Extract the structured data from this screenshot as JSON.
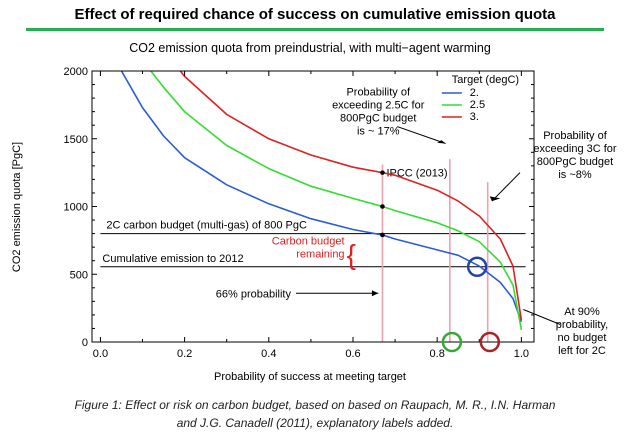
{
  "page": {
    "title": "Effect of required chance of success on cumulative emission quota",
    "title_rule_color": "#22b14c"
  },
  "caption": {
    "line1": "Figure 1: Effect or risk on carbon budget, based on based on Raupach, M. R., I.N. Harman",
    "line2": "and J.G. Canadell (2011), explanatory labels added."
  },
  "chart_data": {
    "type": "line",
    "title": "CO2 emission quota from preindustrial, with multi−agent warming",
    "xlabel": "Probability of success at meeting target",
    "ylabel": "CO2 emission quota [PgC]",
    "xlim": [
      -0.02,
      1.03
    ],
    "ylim": [
      0,
      2000
    ],
    "x_ticks": [
      0.0,
      0.2,
      0.4,
      0.6,
      0.8,
      1.0
    ],
    "x_tick_labels": [
      "0.0",
      "0.2",
      "0.4",
      "0.6",
      "0.8",
      "1.0"
    ],
    "y_ticks": [
      0,
      500,
      1000,
      1500,
      2000
    ],
    "y_tick_labels": [
      "0",
      "500",
      "1000",
      "1500",
      "2000"
    ],
    "legend": {
      "title": "Target (degC)",
      "position": "top-right",
      "entries": [
        "2.",
        "2.5",
        "3."
      ]
    },
    "series": [
      {
        "name": "2.",
        "color": "#2a5cd6",
        "x": [
          0.05,
          0.1,
          0.15,
          0.2,
          0.3,
          0.4,
          0.5,
          0.6,
          0.67,
          0.7,
          0.8,
          0.85,
          0.9,
          0.95,
          0.98,
          1.0
        ],
        "y": [
          2000,
          1730,
          1520,
          1360,
          1160,
          1020,
          910,
          830,
          790,
          760,
          680,
          640,
          560,
          440,
          320,
          150
        ]
      },
      {
        "name": "2.5",
        "color": "#33dd33",
        "x": [
          0.12,
          0.15,
          0.2,
          0.3,
          0.4,
          0.5,
          0.6,
          0.67,
          0.7,
          0.8,
          0.85,
          0.9,
          0.95,
          0.98,
          1.0
        ],
        "y": [
          2000,
          1880,
          1700,
          1450,
          1280,
          1150,
          1060,
          1000,
          970,
          880,
          820,
          740,
          590,
          420,
          90
        ]
      },
      {
        "name": "3.",
        "color": "#dd2222",
        "x": [
          0.19,
          0.2,
          0.3,
          0.4,
          0.5,
          0.6,
          0.67,
          0.7,
          0.8,
          0.85,
          0.9,
          0.95,
          0.98,
          1.0
        ],
        "y": [
          2000,
          1960,
          1680,
          1500,
          1380,
          1290,
          1250,
          1230,
          1120,
          1040,
          930,
          760,
          560,
          160
        ]
      }
    ],
    "reference_lines": [
      {
        "y": 800,
        "label": "2C carbon budget (multi-gas) of 800 PgC"
      },
      {
        "y": 555,
        "label": "Cumulative emission to 2012"
      }
    ],
    "vertical_markers": [
      {
        "x": 0.67,
        "label": "IPCC (2013)",
        "color": "#f0a0b0"
      },
      {
        "x": 0.83,
        "color": "#f0a0b0"
      },
      {
        "x": 0.92,
        "color": "#f0a0b0"
      }
    ],
    "points": [
      {
        "x": 0.67,
        "y": 1250
      },
      {
        "x": 0.67,
        "y": 1000
      },
      {
        "x": 0.67,
        "y": 790
      }
    ],
    "annotations": {
      "p25": [
        "Probability of",
        "exceeding 2.5C for",
        "800PgC budget",
        "is ~ 17%"
      ],
      "p3": [
        "Probability of",
        "exceeding 3C for",
        "800PgC budget",
        "is ~8%"
      ],
      "remaining": [
        "Carbon budget",
        "remaining"
      ],
      "prob66": "66% probability",
      "prob90": [
        "At 90%",
        "probability,",
        "no budget",
        "left for 2C"
      ]
    },
    "highlight_circles": [
      {
        "x": 0.895,
        "y": 555,
        "color": "#2244aa"
      },
      {
        "x": 0.835,
        "y": 0,
        "color": "#33aa33"
      },
      {
        "x": 0.925,
        "y": 0,
        "color": "#aa2222"
      }
    ],
    "remaining_color": "#dd2222"
  }
}
